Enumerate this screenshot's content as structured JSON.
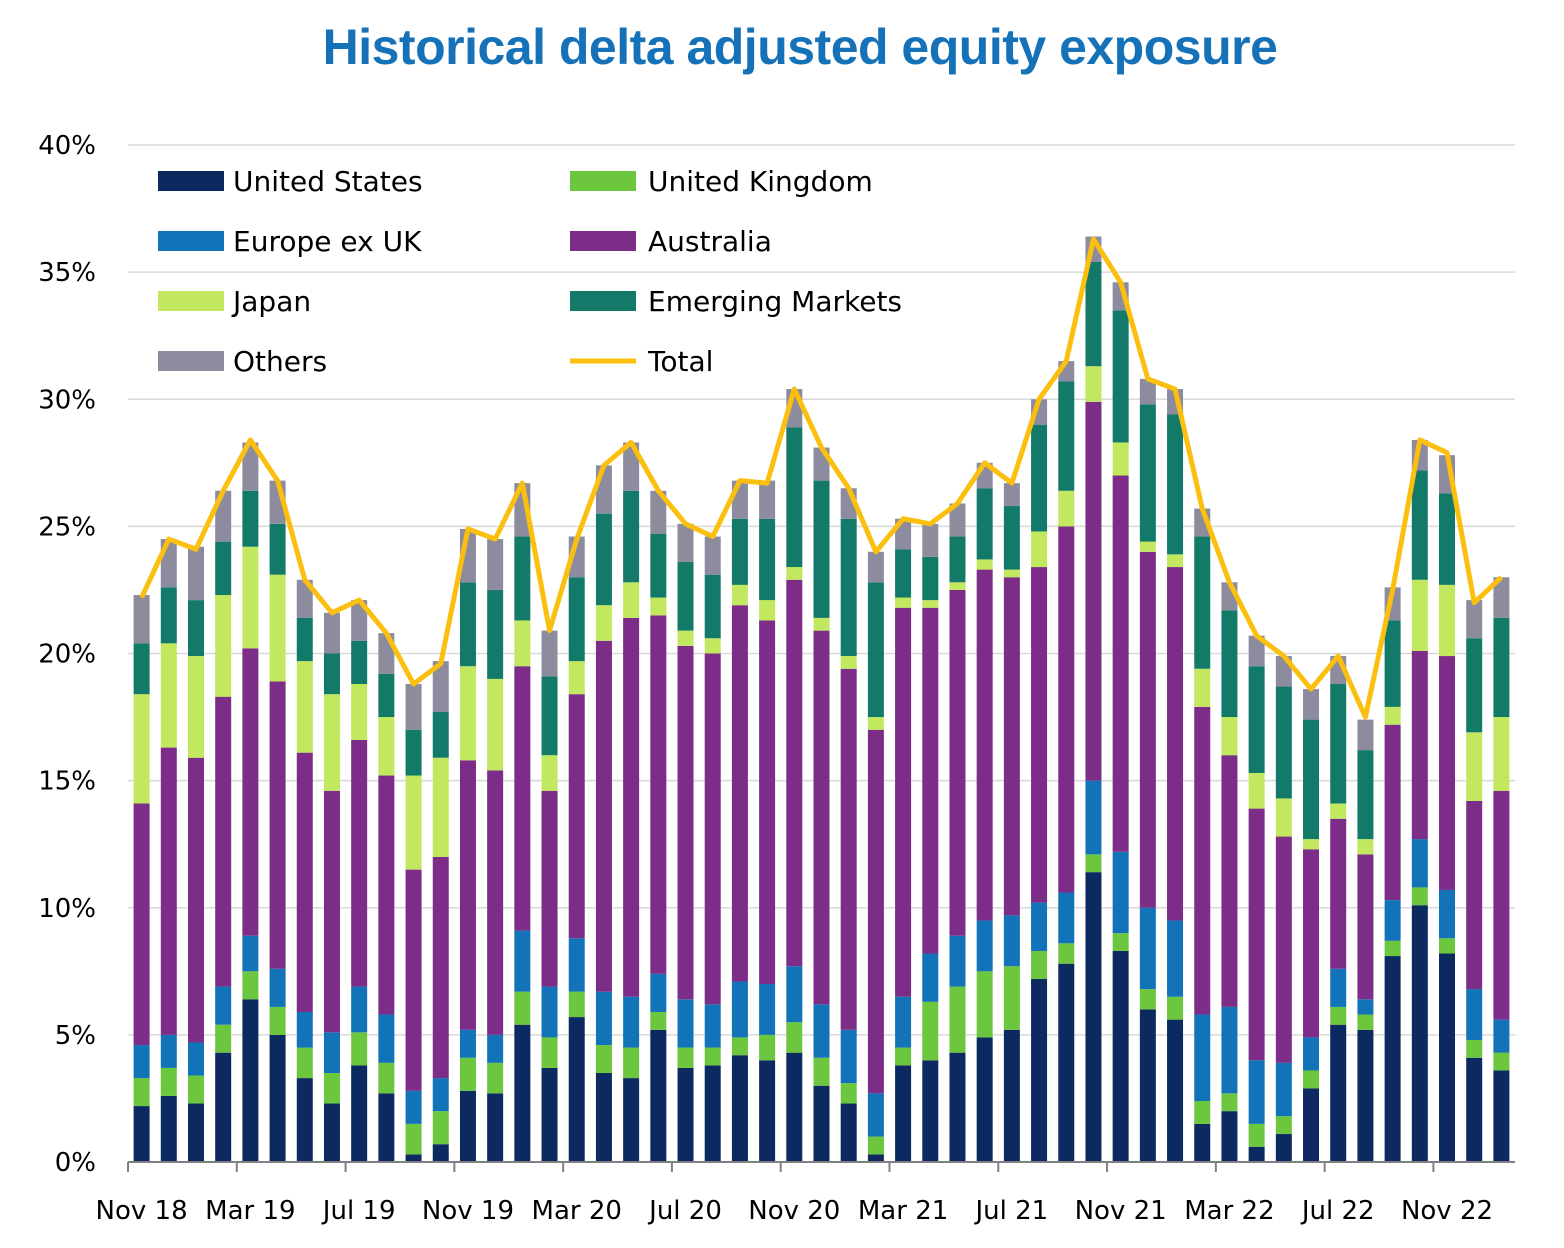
{
  "chart_data": {
    "type": "bar",
    "stacked": true,
    "title": "Historical delta adjusted equity exposure",
    "title_color": "#1672b8",
    "xlabel": "",
    "ylabel": "",
    "ylim": [
      0,
      40
    ],
    "y_ticks": [
      "0%",
      "5%",
      "10%",
      "15%",
      "20%",
      "25%",
      "30%",
      "35%",
      "40%"
    ],
    "y_tick_values": [
      0,
      5,
      10,
      15,
      20,
      25,
      30,
      35,
      40
    ],
    "grid": true,
    "legend_position": "top-left",
    "categories": [
      "Nov 18",
      "Dec 18",
      "Jan 19",
      "Feb 19",
      "Mar 19",
      "Apr 19",
      "May 19",
      "Jun 19",
      "Jul 19",
      "Aug 19",
      "Sep 19",
      "Oct 19",
      "Nov 19",
      "Dec 19",
      "Jan 20",
      "Feb 20",
      "Mar 20",
      "Apr 20",
      "May 20",
      "Jun 20",
      "Jul 20",
      "Aug 20",
      "Sep 20",
      "Oct 20",
      "Nov 20",
      "Dec 20",
      "Jan 21",
      "Feb 21",
      "Mar 21",
      "Apr 21",
      "May 21",
      "Jun 21",
      "Jul 21",
      "Aug 21",
      "Sep 21",
      "Oct 21",
      "Nov 21",
      "Dec 21",
      "Jan 22",
      "Feb 22",
      "Mar 22",
      "Apr 22",
      "May 22",
      "Jun 22",
      "Jul 22",
      "Aug 22",
      "Sep 22",
      "Oct 22",
      "Nov 22",
      "Dec 22",
      "Jan 23"
    ],
    "x_tick_labels": [
      "Nov 18",
      "Mar 19",
      "Jul 19",
      "Nov 19",
      "Mar 20",
      "Jul 20",
      "Nov 20",
      "Mar 21",
      "Jul 21",
      "Nov 21",
      "Mar 22",
      "Jul 22",
      "Nov 22"
    ],
    "series": [
      {
        "name": "United States",
        "color": "#0c2a5f",
        "values": [
          2.2,
          2.6,
          2.3,
          4.3,
          6.4,
          5.0,
          3.3,
          2.3,
          3.8,
          2.7,
          0.3,
          0.7,
          2.8,
          2.7,
          5.4,
          3.7,
          5.7,
          3.5,
          3.3,
          5.2,
          3.7,
          3.8,
          4.2,
          4.0,
          4.3,
          3.0,
          2.3,
          0.3,
          3.8,
          4.0,
          4.3,
          4.9,
          5.2,
          7.2,
          7.8,
          11.4,
          8.3,
          6.0,
          5.6,
          1.5,
          2.0,
          0.6,
          1.1,
          2.9,
          5.4,
          5.2,
          8.1,
          10.1,
          8.2,
          4.1,
          3.6
        ]
      },
      {
        "name": "United Kingdom",
        "color": "#6cc63e",
        "values": [
          1.1,
          1.1,
          1.1,
          1.1,
          1.1,
          1.1,
          1.2,
          1.2,
          1.3,
          1.2,
          1.2,
          1.3,
          1.3,
          1.2,
          1.3,
          1.2,
          1.0,
          1.1,
          1.2,
          0.7,
          0.8,
          0.7,
          0.7,
          1.0,
          1.2,
          1.1,
          0.8,
          0.7,
          0.7,
          2.3,
          2.6,
          2.6,
          2.5,
          1.1,
          0.8,
          0.7,
          0.7,
          0.8,
          0.9,
          0.9,
          0.7,
          0.9,
          0.7,
          0.7,
          0.7,
          0.6,
          0.6,
          0.7,
          0.6,
          0.7,
          0.7
        ]
      },
      {
        "name": "Europe ex UK",
        "color": "#1273b8",
        "values": [
          1.3,
          1.3,
          1.3,
          1.5,
          1.4,
          1.5,
          1.4,
          1.6,
          1.8,
          1.9,
          1.3,
          1.3,
          1.1,
          1.1,
          2.4,
          2.0,
          2.1,
          2.1,
          2.0,
          1.5,
          1.9,
          1.7,
          2.2,
          2.0,
          2.2,
          2.1,
          2.1,
          1.7,
          2.0,
          1.9,
          2.0,
          2.0,
          2.0,
          1.9,
          2.0,
          2.9,
          3.2,
          3.2,
          3.0,
          3.4,
          3.4,
          2.5,
          2.1,
          1.3,
          1.5,
          0.6,
          1.6,
          1.9,
          1.9,
          2.0,
          1.3
        ]
      },
      {
        "name": "Australia",
        "color": "#7b2d87",
        "values": [
          9.5,
          11.3,
          11.2,
          11.4,
          11.3,
          11.3,
          10.2,
          9.5,
          9.7,
          9.4,
          8.7,
          8.7,
          10.6,
          10.4,
          10.4,
          7.7,
          9.6,
          13.8,
          14.9,
          14.1,
          13.9,
          13.8,
          14.8,
          14.3,
          15.2,
          14.7,
          14.2,
          14.3,
          15.3,
          13.6,
          13.6,
          13.8,
          13.3,
          13.2,
          14.4,
          14.9,
          14.8,
          14.0,
          13.9,
          12.1,
          9.9,
          9.9,
          8.9,
          7.4,
          5.9,
          5.7,
          6.9,
          7.4,
          9.2,
          7.4,
          9.0
        ]
      },
      {
        "name": "Japan",
        "color": "#c2e85f",
        "values": [
          4.3,
          4.1,
          4.0,
          4.0,
          4.0,
          4.2,
          3.6,
          3.8,
          2.2,
          2.3,
          3.7,
          3.9,
          3.7,
          3.6,
          1.8,
          1.4,
          1.3,
          1.4,
          1.4,
          0.7,
          0.6,
          0.6,
          0.8,
          0.8,
          0.5,
          0.5,
          0.5,
          0.5,
          0.4,
          0.3,
          0.3,
          0.4,
          0.3,
          1.4,
          1.4,
          1.4,
          1.3,
          0.4,
          0.5,
          1.5,
          1.5,
          1.4,
          1.5,
          0.4,
          0.6,
          0.6,
          0.7,
          2.8,
          2.8,
          2.7,
          2.9
        ]
      },
      {
        "name": "Emerging Markets",
        "color": "#137a6a",
        "values": [
          2.0,
          2.2,
          2.2,
          2.1,
          2.2,
          2.0,
          1.7,
          1.6,
          1.7,
          1.7,
          1.8,
          1.8,
          3.3,
          3.5,
          3.3,
          3.1,
          3.3,
          3.6,
          3.6,
          2.5,
          2.7,
          2.5,
          2.6,
          3.2,
          5.5,
          5.4,
          5.4,
          5.3,
          1.9,
          1.7,
          1.8,
          2.8,
          2.5,
          4.2,
          4.3,
          4.1,
          5.2,
          5.4,
          5.5,
          5.2,
          4.2,
          4.2,
          4.4,
          4.7,
          4.7,
          3.5,
          3.4,
          4.3,
          3.6,
          3.7,
          3.9
        ]
      },
      {
        "name": "Others",
        "color": "#8c8c9e",
        "values": [
          1.9,
          1.9,
          2.1,
          2.0,
          1.9,
          1.7,
          1.5,
          1.6,
          1.6,
          1.6,
          1.8,
          2.0,
          2.1,
          2.0,
          2.1,
          1.8,
          1.6,
          1.9,
          1.9,
          1.7,
          1.5,
          1.5,
          1.5,
          1.5,
          1.5,
          1.3,
          1.2,
          1.2,
          1.2,
          1.3,
          1.3,
          1.0,
          0.9,
          1.0,
          0.8,
          1.0,
          1.1,
          1.0,
          1.0,
          1.1,
          1.1,
          1.2,
          1.2,
          1.2,
          1.1,
          1.2,
          1.3,
          1.2,
          1.5,
          1.5,
          1.6
        ]
      }
    ],
    "line_series": {
      "name": "Total",
      "color": "#fbbf0f",
      "values": [
        22.2,
        24.5,
        24.1,
        26.4,
        28.4,
        26.8,
        22.9,
        21.6,
        22.1,
        20.8,
        18.8,
        19.6,
        24.9,
        24.5,
        26.7,
        20.9,
        24.5,
        27.4,
        28.3,
        26.4,
        25.1,
        24.6,
        26.8,
        26.7,
        30.4,
        28.1,
        26.5,
        24.0,
        25.3,
        25.1,
        25.9,
        27.5,
        26.7,
        30.0,
        31.5,
        36.3,
        34.6,
        30.8,
        30.4,
        25.7,
        22.8,
        20.7,
        19.9,
        18.6,
        19.9,
        17.5,
        22.5,
        28.4,
        27.9,
        22.0,
        23.0
      ]
    }
  }
}
